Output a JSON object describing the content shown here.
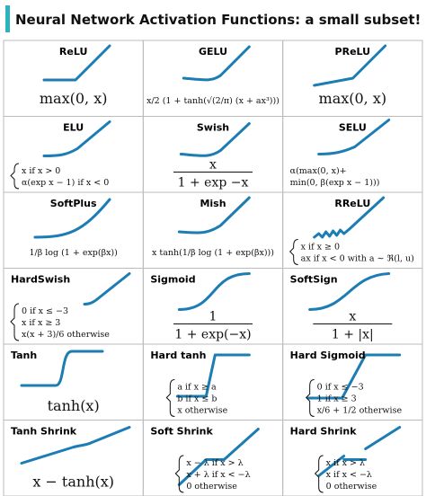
{
  "title": "Neural Network Activation Functions: a small subset!",
  "cells": [
    {
      "name": "ReLU",
      "formula": {
        "lines": [
          "max(0, x)"
        ]
      }
    },
    {
      "name": "GELU",
      "formula": {
        "lines": [
          "x/2 (1 + tanh(√(2/π) (x + ax³)))"
        ]
      }
    },
    {
      "name": "PReLU",
      "formula": {
        "lines": [
          "max(0, x)"
        ]
      }
    },
    {
      "name": "ELU",
      "formula": {
        "lines": [
          "x if x > 0",
          "α(exp x − 1) if x < 0"
        ]
      }
    },
    {
      "name": "Swish",
      "formula": {
        "numerator": "x",
        "denominator": "1 + exp −x"
      }
    },
    {
      "name": "SELU",
      "formula": {
        "lines": [
          "α(max(0, x)+",
          "min(0, β(exp x − 1)))"
        ]
      }
    },
    {
      "name": "SoftPlus",
      "formula": {
        "lines": [
          "1/β log (1 + exp(βx))"
        ]
      }
    },
    {
      "name": "Mish",
      "formula": {
        "lines": [
          "x tanh(1/β log (1 + exp(βx)))"
        ]
      }
    },
    {
      "name": "RReLU",
      "formula": {
        "lines": [
          "x if x ≥ 0",
          "ax if x < 0 with a ∼ ℜ(l, u)"
        ]
      }
    },
    {
      "name": "HardSwish",
      "formula": {
        "lines": [
          "0 if x ≤ −3",
          "x if x ≥ 3",
          "x(x + 3)/6 otherwise"
        ]
      }
    },
    {
      "name": "Sigmoid",
      "formula": {
        "numerator": "1",
        "denominator": "1 + exp(−x)"
      }
    },
    {
      "name": "SoftSign",
      "formula": {
        "numerator": "x",
        "denominator": "1 + |x|"
      }
    },
    {
      "name": "Tanh",
      "formula": {
        "lines": [
          "tanh(x)"
        ]
      }
    },
    {
      "name": "Hard tanh",
      "formula": {
        "lines": [
          "a if x ≥ a",
          "b if x ≤ b",
          "x otherwise"
        ]
      }
    },
    {
      "name": "Hard Sigmoid",
      "formula": {
        "lines": [
          "0 if x ≤ −3",
          "1 if x ≥ 3",
          "x/6 + 1/2 otherwise"
        ]
      }
    },
    {
      "name": "Tanh Shrink",
      "formula": {
        "lines": [
          "x − tanh(x)"
        ]
      }
    },
    {
      "name": "Soft Shrink",
      "formula": {
        "lines": [
          "x − λ if x > λ",
          "x + λ if x < −λ",
          "0 otherwise"
        ]
      }
    },
    {
      "name": "Hard Shrink",
      "formula": {
        "lines": [
          "x if x > λ",
          "x if x < −λ",
          "0 otherwise"
        ]
      }
    }
  ]
}
